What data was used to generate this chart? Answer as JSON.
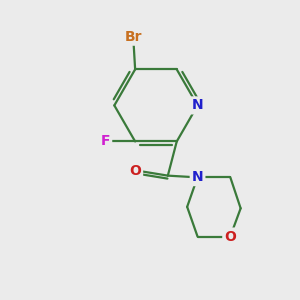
{
  "background_color": "#ebebeb",
  "bond_color": "#3a7a3a",
  "bond_width": 1.6,
  "atom_colors": {
    "Br": "#c87020",
    "F": "#d020d0",
    "N_pyridine": "#2020cc",
    "N_morpholine": "#2020cc",
    "O_carbonyl": "#cc2020",
    "O_morpholine": "#cc2020"
  },
  "atom_fontsizes": {
    "Br": 10,
    "F": 10,
    "N": 10,
    "O": 10
  }
}
